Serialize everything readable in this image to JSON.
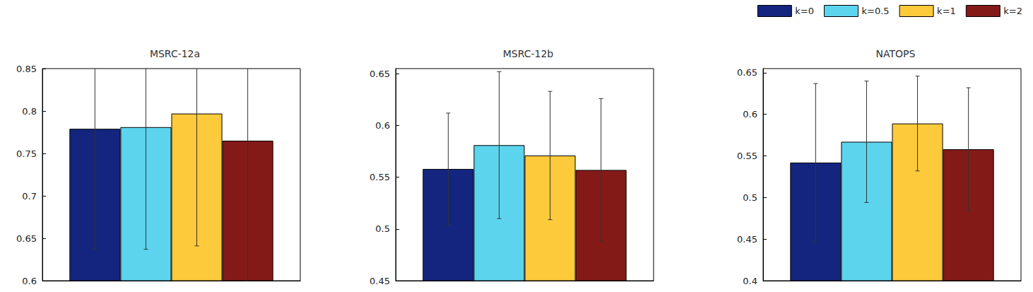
{
  "chart_data": [
    {
      "type": "bar",
      "title": "MSRC-12a",
      "categories": [
        null
      ],
      "ylim": [
        0.6,
        0.85
      ],
      "yticks": [
        0.6,
        0.65,
        0.7,
        0.75,
        0.8,
        0.85
      ],
      "series": [
        {
          "name": "k=0",
          "color": "#13257f",
          "values": [
            0.779
          ],
          "errors": [
            0.142
          ]
        },
        {
          "name": "k=0.5",
          "color": "#5dd4ee",
          "values": [
            0.781
          ],
          "errors": [
            0.144
          ]
        },
        {
          "name": "k=1",
          "color": "#fcca3a",
          "values": [
            0.797
          ],
          "errors": [
            0.156
          ]
        },
        {
          "name": "k=2",
          "color": "#841a17",
          "values": [
            0.765
          ],
          "errors": [
            0.165
          ]
        }
      ]
    },
    {
      "type": "bar",
      "title": "MSRC-12b",
      "categories": [
        null
      ],
      "ylim": [
        0.45,
        0.655
      ],
      "yticks": [
        0.45,
        0.5,
        0.55,
        0.6,
        0.65
      ],
      "series": [
        {
          "name": "k=0",
          "color": "#13257f",
          "values": [
            0.558
          ],
          "errors": [
            0.054
          ]
        },
        {
          "name": "k=0.5",
          "color": "#5dd4ee",
          "values": [
            0.581
          ],
          "errors": [
            0.071
          ]
        },
        {
          "name": "k=1",
          "color": "#fcca3a",
          "values": [
            0.571
          ],
          "errors": [
            0.062
          ]
        },
        {
          "name": "k=2",
          "color": "#841a17",
          "values": [
            0.557
          ],
          "errors": [
            0.069
          ]
        }
      ]
    },
    {
      "type": "bar",
      "title": "NATOPS",
      "categories": [
        null
      ],
      "ylim": [
        0.4,
        0.655
      ],
      "yticks": [
        0.4,
        0.45,
        0.5,
        0.55,
        0.6,
        0.65
      ],
      "legend": "top right",
      "series": [
        {
          "name": "k=0",
          "color": "#13257f",
          "values": [
            0.542
          ],
          "errors": [
            0.095
          ]
        },
        {
          "name": "k=0.5",
          "color": "#5dd4ee",
          "values": [
            0.567
          ],
          "errors": [
            0.073
          ]
        },
        {
          "name": "k=1",
          "color": "#fcca3a",
          "values": [
            0.589
          ],
          "errors": [
            0.057
          ]
        },
        {
          "name": "k=2",
          "color": "#841a17",
          "values": [
            0.558
          ],
          "errors": [
            0.074
          ]
        }
      ]
    }
  ]
}
